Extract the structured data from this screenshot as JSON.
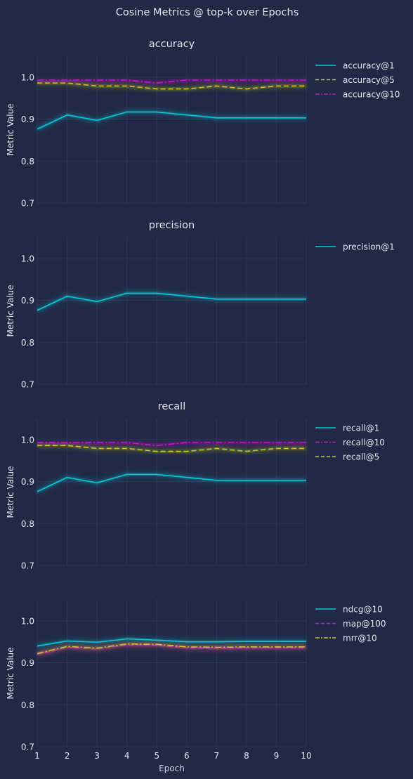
{
  "figure": {
    "title": "Cosine Metrics @ top-k over Epochs",
    "background": "#212946"
  },
  "chart_data": [
    {
      "type": "line",
      "title": "accuracy",
      "xlabel": "",
      "ylabel": "Metric Value",
      "ylim": [
        0.7,
        1.05
      ],
      "yticks": [
        0.7,
        0.8,
        0.9,
        1.0
      ],
      "ytick_labels": [
        "0.7",
        "0.8",
        "0.9",
        "1.0"
      ],
      "x": [
        1,
        2,
        3,
        4,
        5,
        6,
        7,
        8,
        9,
        10
      ],
      "xticks": [
        1,
        2,
        3,
        4,
        5,
        6,
        7,
        8,
        9,
        10
      ],
      "show_xtick_labels": false,
      "grid": true,
      "legend": "right-outside",
      "series": [
        {
          "name": "accuracy@1",
          "color": "#08c8d8",
          "dash": "solid",
          "values": [
            0.876,
            0.91,
            0.897,
            0.917,
            0.917,
            0.91,
            0.903,
            0.903,
            0.903,
            0.903
          ]
        },
        {
          "name": "accuracy@5",
          "color": "#c8c820",
          "dash": "dashed",
          "values": [
            0.986,
            0.986,
            0.979,
            0.979,
            0.972,
            0.972,
            0.979,
            0.972,
            0.979,
            0.979
          ]
        },
        {
          "name": "accuracy@10",
          "color": "#cc10cc",
          "dash": "dashdot",
          "values": [
            0.993,
            0.993,
            0.993,
            0.993,
            0.986,
            0.993,
            0.993,
            0.993,
            0.993,
            0.993
          ]
        }
      ]
    },
    {
      "type": "line",
      "title": "precision",
      "xlabel": "",
      "ylabel": "Metric Value",
      "ylim": [
        0.7,
        1.05
      ],
      "yticks": [
        0.7,
        0.8,
        0.9,
        1.0
      ],
      "ytick_labels": [
        "0.7",
        "0.8",
        "0.9",
        "1.0"
      ],
      "x": [
        1,
        2,
        3,
        4,
        5,
        6,
        7,
        8,
        9,
        10
      ],
      "xticks": [
        1,
        2,
        3,
        4,
        5,
        6,
        7,
        8,
        9,
        10
      ],
      "show_xtick_labels": false,
      "grid": true,
      "legend": "right-outside",
      "series": [
        {
          "name": "precision@1",
          "color": "#08c8d8",
          "dash": "solid",
          "values": [
            0.876,
            0.91,
            0.897,
            0.917,
            0.917,
            0.91,
            0.903,
            0.903,
            0.903,
            0.903
          ]
        }
      ]
    },
    {
      "type": "line",
      "title": "recall",
      "xlabel": "",
      "ylabel": "Metric Value",
      "ylim": [
        0.7,
        1.05
      ],
      "yticks": [
        0.7,
        0.8,
        0.9,
        1.0
      ],
      "ytick_labels": [
        "0.7",
        "0.8",
        "0.9",
        "1.0"
      ],
      "x": [
        1,
        2,
        3,
        4,
        5,
        6,
        7,
        8,
        9,
        10
      ],
      "xticks": [
        1,
        2,
        3,
        4,
        5,
        6,
        7,
        8,
        9,
        10
      ],
      "show_xtick_labels": false,
      "grid": true,
      "legend": "right-outside",
      "series": [
        {
          "name": "recall@1",
          "color": "#08c8d8",
          "dash": "solid",
          "values": [
            0.876,
            0.91,
            0.897,
            0.917,
            0.917,
            0.91,
            0.903,
            0.903,
            0.903,
            0.903
          ]
        },
        {
          "name": "recall@10",
          "color": "#cc10cc",
          "dash": "dashdot",
          "values": [
            0.993,
            0.993,
            0.993,
            0.993,
            0.986,
            0.993,
            0.993,
            0.993,
            0.993,
            0.993
          ]
        },
        {
          "name": "recall@5",
          "color": "#c8c820",
          "dash": "dashed",
          "values": [
            0.986,
            0.986,
            0.979,
            0.979,
            0.972,
            0.972,
            0.979,
            0.972,
            0.979,
            0.979
          ]
        }
      ]
    },
    {
      "type": "line",
      "title": "",
      "xlabel": "Epoch",
      "ylabel": "Metric Value",
      "ylim": [
        0.7,
        1.05
      ],
      "yticks": [
        0.7,
        0.8,
        0.9,
        1.0
      ],
      "ytick_labels": [
        "0.7",
        "0.8",
        "0.9",
        "1.0"
      ],
      "x": [
        1,
        2,
        3,
        4,
        5,
        6,
        7,
        8,
        9,
        10
      ],
      "xticks": [
        1,
        2,
        3,
        4,
        5,
        6,
        7,
        8,
        9,
        10
      ],
      "xtick_labels": [
        "1",
        "2",
        "3",
        "4",
        "5",
        "6",
        "7",
        "8",
        "9",
        "10"
      ],
      "show_xtick_labels": true,
      "grid": true,
      "legend": "right-outside",
      "series": [
        {
          "name": "ndcg@10",
          "color": "#08c8d8",
          "dash": "solid",
          "values": [
            0.94,
            0.952,
            0.949,
            0.957,
            0.954,
            0.95,
            0.95,
            0.951,
            0.951,
            0.951
          ]
        },
        {
          "name": "map@100",
          "color": "#cc10cc",
          "dash": "dashed",
          "values": [
            0.92,
            0.937,
            0.933,
            0.943,
            0.942,
            0.936,
            0.935,
            0.936,
            0.936,
            0.936
          ]
        },
        {
          "name": "mrr@10",
          "color": "#c8c820",
          "dash": "dashdot",
          "values": [
            0.922,
            0.939,
            0.935,
            0.945,
            0.944,
            0.938,
            0.937,
            0.938,
            0.938,
            0.938
          ]
        }
      ]
    }
  ]
}
